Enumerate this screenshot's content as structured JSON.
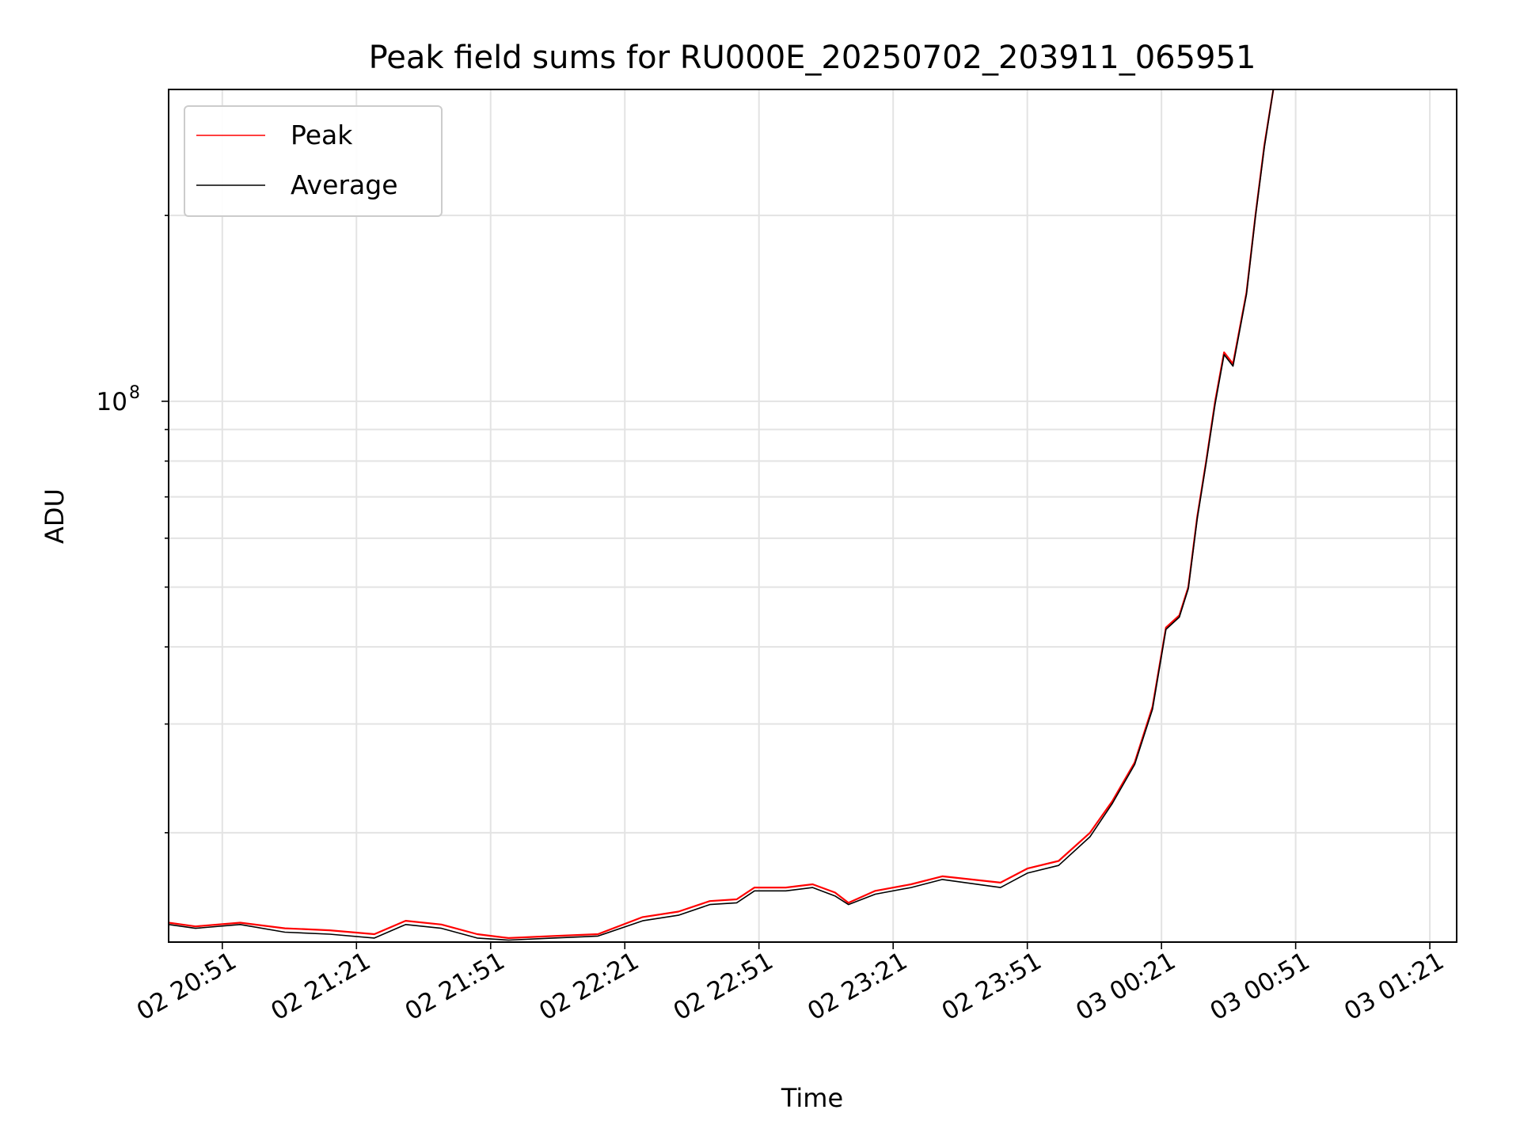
{
  "chart_data": {
    "type": "line",
    "title": "Peak field sums for RU000E_20250702_203911_065951",
    "xlabel": "Time",
    "ylabel": "ADU",
    "yscale": "log",
    "xlim": [
      "2025-07-02 20:39",
      "2025-07-03 01:27"
    ],
    "ylim": [
      13300000,
      320000000
    ],
    "x_ticks": [
      {
        "time": "2025-07-02 20:51",
        "label": "02 20:51"
      },
      {
        "time": "2025-07-02 21:21",
        "label": "02 21:21"
      },
      {
        "time": "2025-07-02 21:51",
        "label": "02 21:51"
      },
      {
        "time": "2025-07-02 22:21",
        "label": "02 22:21"
      },
      {
        "time": "2025-07-02 22:51",
        "label": "02 22:51"
      },
      {
        "time": "2025-07-02 23:21",
        "label": "02 23:21"
      },
      {
        "time": "2025-07-02 23:51",
        "label": "02 23:51"
      },
      {
        "time": "2025-07-03 00:21",
        "label": "03 00:21"
      },
      {
        "time": "2025-07-03 00:51",
        "label": "03 00:51"
      },
      {
        "time": "2025-07-03 01:21",
        "label": "03 01:21"
      }
    ],
    "y_major_ticks": [
      {
        "value": 100000000,
        "base": "10",
        "exp": "8"
      }
    ],
    "y_minor_ticks": [
      20000000,
      30000000,
      40000000,
      50000000,
      60000000,
      70000000,
      80000000,
      90000000,
      200000000
    ],
    "grid": true,
    "legend_position": "top-left",
    "series": [
      {
        "name": "Peak",
        "color": "#ff0000",
        "x": [
          "2025-07-02 20:39",
          "2025-07-02 20:45",
          "2025-07-02 20:55",
          "2025-07-02 21:05",
          "2025-07-02 21:15",
          "2025-07-02 21:25",
          "2025-07-02 21:32",
          "2025-07-02 21:40",
          "2025-07-02 21:48",
          "2025-07-02 21:55",
          "2025-07-02 22:05",
          "2025-07-02 22:15",
          "2025-07-02 22:25",
          "2025-07-02 22:33",
          "2025-07-02 22:40",
          "2025-07-02 22:46",
          "2025-07-02 22:50",
          "2025-07-02 22:57",
          "2025-07-02 23:03",
          "2025-07-02 23:08",
          "2025-07-02 23:11",
          "2025-07-02 23:17",
          "2025-07-02 23:25",
          "2025-07-02 23:32",
          "2025-07-02 23:45",
          "2025-07-02 23:51",
          "2025-07-02 23:58",
          "2025-07-03 00:05",
          "2025-07-03 00:10",
          "2025-07-03 00:15",
          "2025-07-03 00:19",
          "2025-07-03 00:22",
          "2025-07-03 00:25",
          "2025-07-03 00:27",
          "2025-07-03 00:29",
          "2025-07-03 00:31",
          "2025-07-03 00:33",
          "2025-07-03 00:35",
          "2025-07-03 00:37",
          "2025-07-03 00:40",
          "2025-07-03 00:42",
          "2025-07-03 00:44",
          "2025-07-03 00:46"
        ],
        "y": [
          14300000,
          14100000,
          14300000,
          14000000,
          13900000,
          13700000,
          14400000,
          14200000,
          13700000,
          13500000,
          13600000,
          13700000,
          14600000,
          14900000,
          15500000,
          15600000,
          16300000,
          16300000,
          16500000,
          16000000,
          15400000,
          16100000,
          16500000,
          17000000,
          16600000,
          17500000,
          18000000,
          20000000,
          22500000,
          26000000,
          32000000,
          43000000,
          45000000,
          50000000,
          65000000,
          80000000,
          100000000,
          120000000,
          115000000,
          150000000,
          200000000,
          260000000,
          320000000
        ]
      },
      {
        "name": "Average",
        "color": "#000000",
        "x": [
          "2025-07-02 20:39",
          "2025-07-02 20:45",
          "2025-07-02 20:55",
          "2025-07-02 21:05",
          "2025-07-02 21:15",
          "2025-07-02 21:25",
          "2025-07-02 21:32",
          "2025-07-02 21:40",
          "2025-07-02 21:48",
          "2025-07-02 21:55",
          "2025-07-02 22:05",
          "2025-07-02 22:15",
          "2025-07-02 22:25",
          "2025-07-02 22:33",
          "2025-07-02 22:40",
          "2025-07-02 22:46",
          "2025-07-02 22:50",
          "2025-07-02 22:57",
          "2025-07-02 23:03",
          "2025-07-02 23:08",
          "2025-07-02 23:11",
          "2025-07-02 23:17",
          "2025-07-02 23:25",
          "2025-07-02 23:32",
          "2025-07-02 23:45",
          "2025-07-02 23:51",
          "2025-07-02 23:58",
          "2025-07-03 00:05",
          "2025-07-03 00:10",
          "2025-07-03 00:15",
          "2025-07-03 00:19",
          "2025-07-03 00:22",
          "2025-07-03 00:25",
          "2025-07-03 00:27",
          "2025-07-03 00:29",
          "2025-07-03 00:31",
          "2025-07-03 00:33",
          "2025-07-03 00:35",
          "2025-07-03 00:37",
          "2025-07-03 00:40",
          "2025-07-03 00:42",
          "2025-07-03 00:44",
          "2025-07-03 00:46"
        ],
        "y": [
          14200000,
          14000000,
          14200000,
          13800000,
          13700000,
          13500000,
          14200000,
          14000000,
          13500000,
          13400000,
          13500000,
          13600000,
          14400000,
          14700000,
          15300000,
          15400000,
          16100000,
          16100000,
          16300000,
          15800000,
          15300000,
          15900000,
          16300000,
          16800000,
          16300000,
          17200000,
          17700000,
          19700000,
          22300000,
          25800000,
          31700000,
          42700000,
          44700000,
          49700000,
          64500000,
          79500000,
          99000000,
          119000000,
          114000000,
          149000000,
          199000000,
          258000000,
          320000000
        ]
      }
    ]
  }
}
